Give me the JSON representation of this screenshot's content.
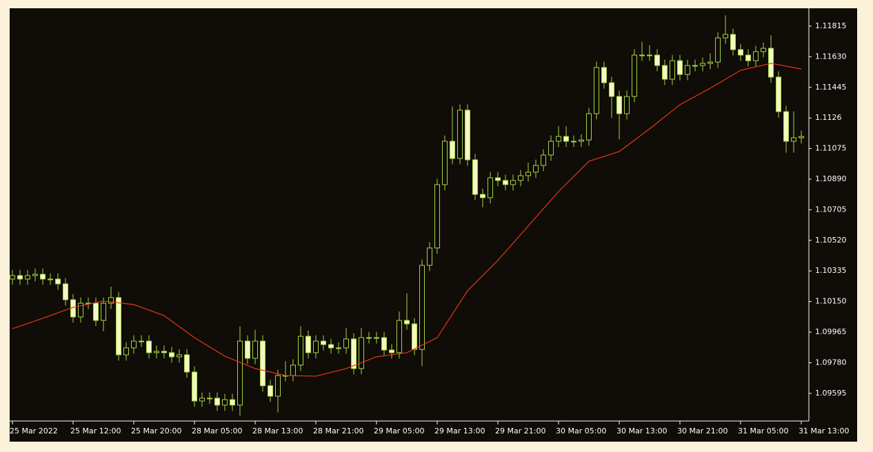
{
  "chart_data": {
    "type": "candlestick",
    "categories": [
      "25 Mar 2022",
      null,
      null,
      null,
      null,
      null,
      null,
      null,
      "25 Mar 12:00",
      null,
      null,
      null,
      null,
      null,
      null,
      null,
      "25 Mar 20:00",
      null,
      null,
      null,
      null,
      null,
      null,
      null,
      "28 Mar 05:00",
      null,
      null,
      null,
      null,
      null,
      null,
      null,
      "28 Mar 13:00",
      null,
      null,
      null,
      null,
      null,
      null,
      null,
      "28 Mar 21:00",
      null,
      null,
      null,
      null,
      null,
      null,
      null,
      "29 Mar 05:00",
      null,
      null,
      null,
      null,
      null,
      null,
      null,
      "29 Mar 13:00",
      null,
      null,
      null,
      null,
      null,
      null,
      null,
      "29 Mar 21:00",
      null,
      null,
      null,
      null,
      null,
      null,
      null,
      "30 Mar 05:00",
      null,
      null,
      null,
      null,
      null,
      null,
      null,
      "30 Mar 13:00",
      null,
      null,
      null,
      null,
      null,
      null,
      null,
      "30 Mar 21:00",
      null,
      null,
      null,
      null,
      null,
      null,
      null,
      "31 Mar 05:00",
      null,
      null,
      null,
      null,
      null,
      null,
      null,
      "31 Mar 13:00"
    ],
    "open": [
      1.10286,
      1.10307,
      1.10286,
      1.10307,
      1.10315,
      1.10286,
      1.10286,
      1.10257,
      1.10161,
      1.10057,
      1.1014,
      1.1014,
      1.10036,
      1.1014,
      1.10174,
      1.09828,
      1.0987,
      1.09911,
      1.09911,
      1.09841,
      1.09849,
      1.09841,
      1.09816,
      1.09828,
      1.09724,
      1.09549,
      1.09566,
      1.09566,
      1.09524,
      1.09557,
      1.09524,
      1.09911,
      1.09807,
      1.09911,
      1.09641,
      1.09578,
      1.09703,
      1.09703,
      1.09766,
      1.0994,
      1.09841,
      1.09911,
      1.0989,
      1.0987,
      1.0987,
      1.09924,
      1.09745,
      1.09932,
      1.09932,
      1.09932,
      1.09857,
      1.09841,
      1.10036,
      1.10015,
      1.09861,
      1.10369,
      1.10474,
      1.10857,
      1.11119,
      1.11015,
      1.11307,
      1.11007,
      1.10798,
      1.10778,
      1.10898,
      1.10882,
      1.10857,
      1.10882,
      1.10911,
      1.10932,
      1.10973,
      1.11036,
      1.11119,
      1.11148,
      1.11119,
      1.11119,
      1.11127,
      1.11286,
      1.11565,
      1.11473,
      1.1139,
      1.11286,
      1.1139,
      1.1164,
      1.1164,
      1.1164,
      1.11577,
      1.11494,
      1.11606,
      1.11523,
      1.11577,
      1.11577,
      1.1159,
      1.11598,
      1.11744,
      1.11765,
      1.11673,
      1.1164,
      1.11606,
      1.11661,
      1.11681,
      1.11507,
      1.11298,
      1.11119,
      1.1114
    ],
    "high": [
      1.10342,
      1.10342,
      1.10342,
      1.1035,
      1.1035,
      1.10321,
      1.10321,
      1.10292,
      1.10196,
      1.10175,
      1.10175,
      1.10175,
      1.10175,
      1.1024,
      1.10209,
      1.09905,
      1.09946,
      1.09946,
      1.09946,
      1.09884,
      1.09884,
      1.09876,
      1.09863,
      1.09863,
      1.09759,
      1.09601,
      1.09601,
      1.09601,
      1.09592,
      1.09592,
      1.1,
      1.09946,
      1.0998,
      1.09946,
      1.09676,
      1.09738,
      1.0979,
      1.09801,
      1.1,
      1.09975,
      1.09946,
      1.09946,
      1.09925,
      1.09905,
      1.0999,
      1.09959,
      1.0999,
      1.09967,
      1.09967,
      1.09967,
      1.09892,
      1.1009,
      1.102,
      1.1005,
      1.10404,
      1.10509,
      1.10892,
      1.11154,
      1.1133,
      1.11342,
      1.11342,
      1.11042,
      1.10833,
      1.10933,
      1.10933,
      1.10917,
      1.10917,
      1.10946,
      1.1099,
      1.11008,
      1.11071,
      1.11154,
      1.1121,
      1.1121,
      1.11154,
      1.11162,
      1.11321,
      1.116,
      1.116,
      1.11508,
      1.11425,
      1.11425,
      1.11675,
      1.1172,
      1.117,
      1.11675,
      1.11612,
      1.11641,
      1.11641,
      1.11612,
      1.11612,
      1.11625,
      1.1165,
      1.11779,
      1.1188,
      1.118,
      1.11708,
      1.11675,
      1.11696,
      1.11716,
      1.1176,
      1.11542,
      1.11333,
      1.113,
      1.11183
    ],
    "low": [
      1.10251,
      1.10251,
      1.10251,
      1.10272,
      1.10251,
      1.10251,
      1.10222,
      1.10126,
      1.10022,
      1.10022,
      1.10105,
      1.10001,
      1.0997,
      1.10105,
      1.09793,
      1.09793,
      1.09835,
      1.09876,
      1.09806,
      1.09806,
      1.09806,
      1.09781,
      1.09781,
      1.09689,
      1.09514,
      1.09514,
      1.09531,
      1.09489,
      1.09489,
      1.09489,
      1.0946,
      1.09772,
      1.09772,
      1.09606,
      1.09543,
      1.0948,
      1.09668,
      1.09668,
      1.09731,
      1.09806,
      1.09806,
      1.09855,
      1.09835,
      1.09835,
      1.09835,
      1.0971,
      1.0971,
      1.09897,
      1.09897,
      1.09822,
      1.09806,
      1.09806,
      1.0998,
      1.09826,
      1.0976,
      1.10334,
      1.10439,
      1.10822,
      1.1098,
      1.1098,
      1.10972,
      1.10763,
      1.1072,
      1.10743,
      1.10847,
      1.10822,
      1.10822,
      1.10847,
      1.10876,
      1.10897,
      1.10938,
      1.11001,
      1.11084,
      1.11084,
      1.11084,
      1.11084,
      1.11092,
      1.11251,
      1.11438,
      1.1126,
      1.1113,
      1.11251,
      1.11355,
      1.11605,
      1.11605,
      1.11542,
      1.11459,
      1.11459,
      1.11488,
      1.11488,
      1.11542,
      1.11542,
      1.11555,
      1.11563,
      1.11709,
      1.11638,
      1.11605,
      1.11571,
      1.11571,
      1.11626,
      1.11472,
      1.11263,
      1.1105,
      1.1105,
      1.11105
    ],
    "close": [
      1.10307,
      1.10286,
      1.10307,
      1.10315,
      1.10286,
      1.10286,
      1.10257,
      1.10161,
      1.10057,
      1.1014,
      1.1014,
      1.10036,
      1.1014,
      1.10174,
      1.09828,
      1.0987,
      1.09911,
      1.09911,
      1.09841,
      1.09849,
      1.09841,
      1.09816,
      1.09828,
      1.09724,
      1.09549,
      1.09566,
      1.09566,
      1.09524,
      1.09557,
      1.09524,
      1.09911,
      1.09807,
      1.09911,
      1.09641,
      1.09578,
      1.09703,
      1.09703,
      1.09766,
      1.0994,
      1.09841,
      1.09911,
      1.0989,
      1.0987,
      1.0987,
      1.09924,
      1.09745,
      1.09932,
      1.09932,
      1.09932,
      1.09857,
      1.09841,
      1.10036,
      1.10015,
      1.09861,
      1.10369,
      1.10474,
      1.10857,
      1.11119,
      1.11015,
      1.11307,
      1.11007,
      1.10798,
      1.10778,
      1.10898,
      1.10882,
      1.10857,
      1.10882,
      1.10911,
      1.10932,
      1.10973,
      1.11036,
      1.11119,
      1.11148,
      1.11119,
      1.11119,
      1.11127,
      1.11286,
      1.11565,
      1.11473,
      1.1139,
      1.11286,
      1.1139,
      1.1164,
      1.1164,
      1.1164,
      1.11577,
      1.11494,
      1.11606,
      1.11523,
      1.11577,
      1.11577,
      1.1159,
      1.11598,
      1.11744,
      1.11765,
      1.11673,
      1.1164,
      1.11606,
      1.11661,
      1.11681,
      1.11507,
      1.11298,
      1.11119,
      1.1114,
      1.11148
    ],
    "up_color": "#0f0b06",
    "down_color": "#f4f7c4",
    "outline_color": "#a6d645",
    "ma": {
      "color": "#e8361c",
      "x": [
        0,
        4,
        8,
        12,
        16,
        20,
        24,
        28,
        32,
        36,
        40,
        44,
        48,
        52,
        56,
        60,
        64,
        68,
        72,
        76,
        80,
        84,
        88,
        92,
        96,
        100,
        104
      ],
      "values": [
        1.09986,
        1.10049,
        1.10115,
        1.10153,
        1.10132,
        1.10065,
        1.09932,
        1.0982,
        1.09745,
        1.09703,
        1.09699,
        1.09745,
        1.09816,
        1.09841,
        1.09932,
        1.10215,
        1.10399,
        1.10607,
        1.10815,
        1.10998,
        1.11057,
        1.11194,
        1.1134,
        1.1144,
        1.11548,
        1.1159,
        1.11556
      ]
    },
    "ylim": [
      1.09428,
      1.11923
    ],
    "yticks": [
      1.11815,
      {
        "value": 1.1163,
        "label": "1.11630"
      },
      1.11445,
      1.1126,
      1.11075,
      {
        "value": 1.1089,
        "label": "1.10890"
      },
      1.10705,
      {
        "value": 1.1052,
        "label": "1.10520"
      },
      1.10335,
      {
        "value": 1.1015,
        "label": "1.10150"
      },
      1.09965,
      {
        "value": 1.0978,
        "label": "1.09780"
      },
      1.09595
    ],
    "grid": false
  }
}
